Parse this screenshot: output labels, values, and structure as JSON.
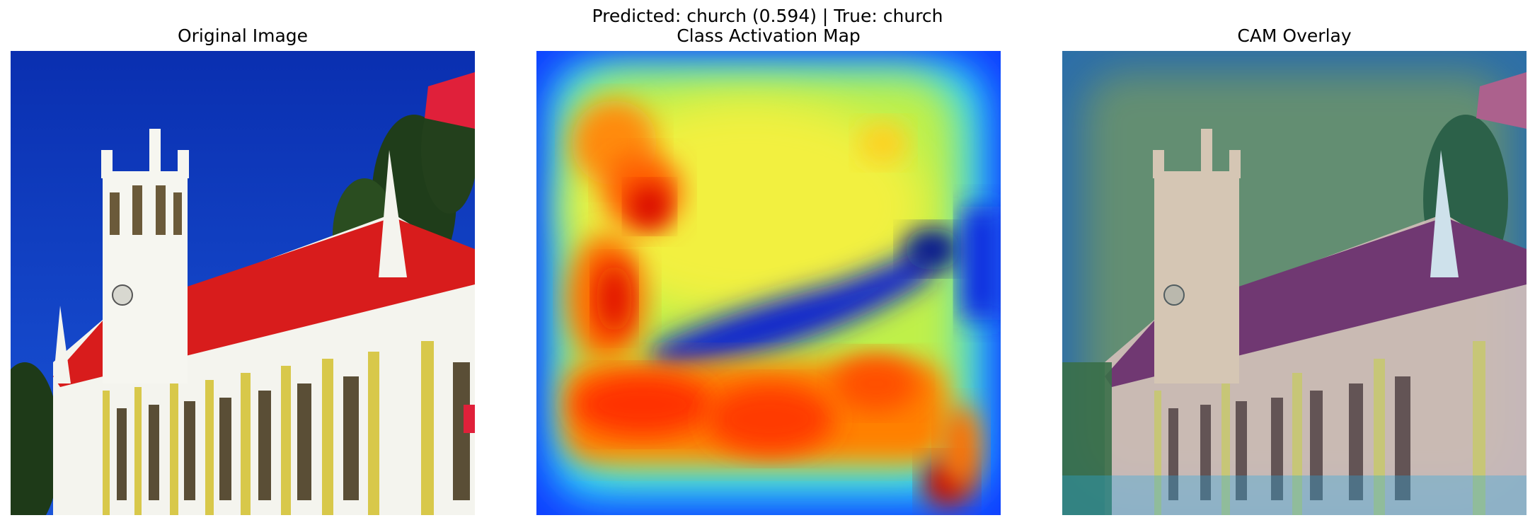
{
  "figure": {
    "suptitle": "Predicted: church (0.594) | True: church",
    "panels": [
      {
        "title": "Original Image"
      },
      {
        "title": "Class Activation Map"
      },
      {
        "title": "CAM Overlay"
      }
    ]
  },
  "prediction": {
    "label": "church",
    "score": 0.594,
    "true_label": "church"
  },
  "colormap": "jet"
}
